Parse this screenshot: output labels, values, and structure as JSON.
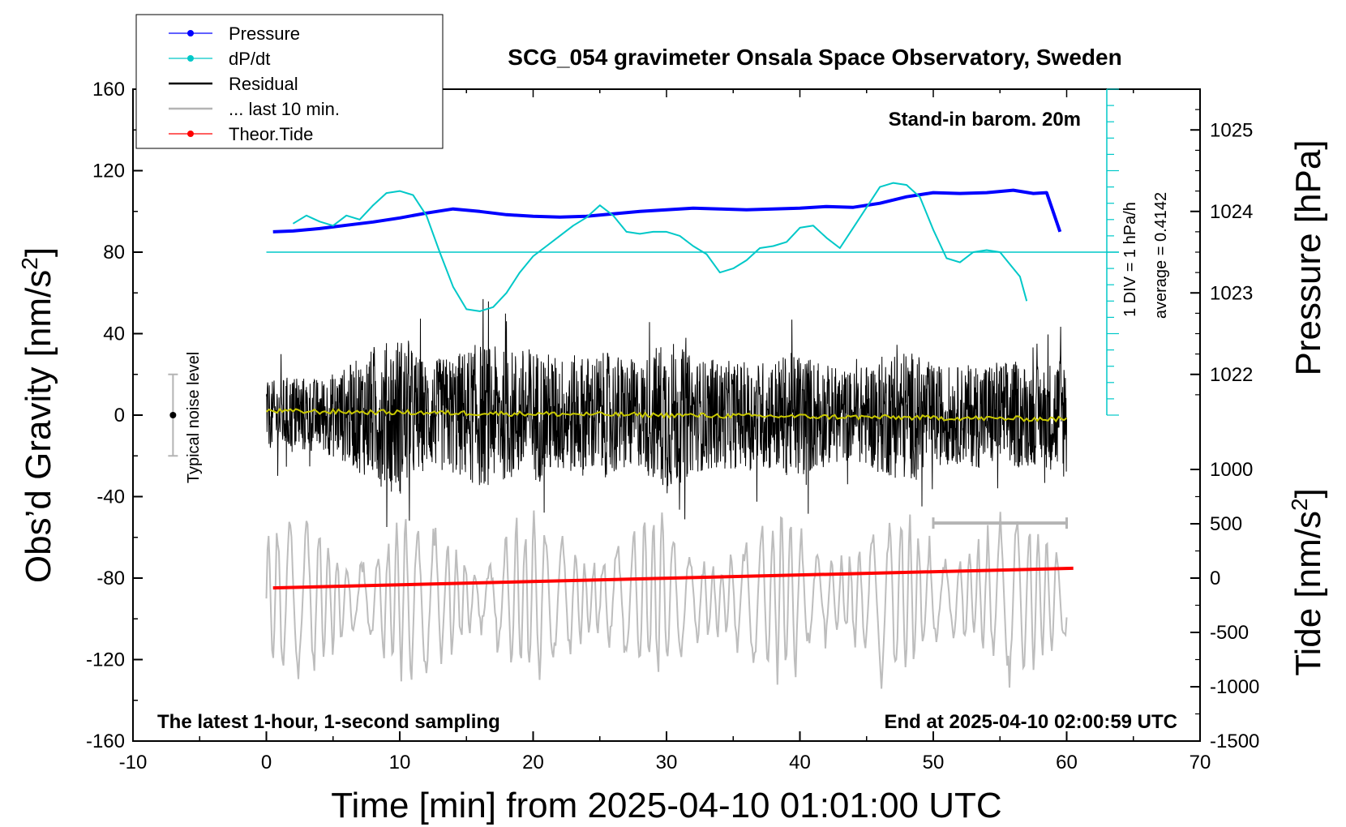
{
  "chart_data": {
    "type": "line",
    "title": "SCG_054 gravimeter Onsala Space Observatory, Sweden",
    "xlabel": "Time [min] from 2025-04-10 01:01:00 UTC",
    "ylabel_left": "Obs’d Gravity [nm/s",
    "ylabel_left_sup": "2",
    "ylabel_left_end": "]",
    "ylabel_pressure": "Pressure [hPa]",
    "ylabel_tide": "Tide [nm/s",
    "ylabel_tide_sup": "2",
    "ylabel_tide_end": "]",
    "xlim": [
      -10,
      70
    ],
    "ylim": [
      -160,
      160
    ],
    "xticks": [
      "-10",
      "0",
      "10",
      "20",
      "30",
      "40",
      "50",
      "60",
      "70"
    ],
    "yticks": [
      "160",
      "120",
      "80",
      "40",
      "0",
      "-40",
      "-80",
      "-120",
      "-160"
    ],
    "pressure_ticks": [
      "1025",
      "1024",
      "1023",
      "1022"
    ],
    "pressure_tick_values": [
      1025,
      1024,
      1023,
      1022
    ],
    "tide_ticks": [
      "1000",
      "500",
      "0",
      "-500",
      "-1000",
      "-1500"
    ],
    "tide_tick_values": [
      1000,
      500,
      0,
      -500,
      -1000,
      -1500
    ],
    "pressure_axis": {
      "ref_gravity": 80,
      "hpa_per_20nms2": 0.5,
      "ref_hpa": 1023.5
    },
    "tide_axis": {
      "ref_gravity": -160,
      "nms2_per_gravity_unit": 18.75,
      "ref_nms2": -1500
    },
    "legend": [
      {
        "label": "Pressure",
        "color": "#0000ff",
        "style": "line-dot"
      },
      {
        "label": "dP/dt",
        "color": "#00c8c8",
        "style": "line-dot"
      },
      {
        "label": "Residual",
        "color": "#000000",
        "style": "line"
      },
      {
        "label": "... last 10 min.",
        "color": "#b4b4b4",
        "style": "line"
      },
      {
        "label": "Theor.Tide",
        "color": "#ff0000",
        "style": "line-dot"
      }
    ],
    "annotations": {
      "barometer": "Stand-in barom. 20m",
      "div_label": "1 DIV = 1 hPa/h",
      "average_label": "average = 0.4142",
      "noise_label": "Typical noise level",
      "bottom_left": "The latest 1-hour, 1-second sampling",
      "bottom_right": "End at 2025-04-10 02:00:59 UTC"
    },
    "noise_bar": {
      "x": -7,
      "center": 0,
      "half_range": 20
    },
    "last10_bar": {
      "x_start": 50,
      "x_end": 60,
      "y": -53
    },
    "dpdt_reference_y": 80,
    "series": [
      {
        "name": "Pressure",
        "axis": "pressure_hpa",
        "color": "#0000ff",
        "x": [
          0.5,
          2,
          4,
          6,
          8,
          10,
          12,
          14,
          16,
          18,
          20,
          22,
          24,
          26,
          28,
          30,
          32,
          34,
          36,
          38,
          40,
          42,
          44,
          46,
          48,
          50,
          52,
          54,
          56,
          57.5,
          58.5,
          59.5
        ],
        "y": [
          1023.75,
          1023.76,
          1023.79,
          1023.83,
          1023.87,
          1023.92,
          1023.98,
          1024.03,
          1024.0,
          1023.96,
          1023.94,
          1023.93,
          1023.94,
          1023.97,
          1024.0,
          1024.02,
          1024.04,
          1024.03,
          1024.02,
          1024.03,
          1024.04,
          1024.06,
          1024.05,
          1024.1,
          1024.18,
          1024.23,
          1024.22,
          1024.23,
          1024.26,
          1024.22,
          1024.23,
          1023.75
        ]
      },
      {
        "name": "dP/dt",
        "axis": "gravity",
        "color": "#00c8c8",
        "x": [
          2,
          3,
          4,
          5,
          6,
          7,
          8,
          9,
          10,
          11,
          12,
          13,
          14,
          15,
          16,
          17,
          18,
          19,
          20,
          21,
          22,
          23,
          24,
          25,
          26,
          27,
          28,
          29,
          30,
          31,
          32,
          33,
          34,
          35,
          36,
          37,
          38,
          39,
          40,
          41,
          42,
          43,
          44,
          45,
          46,
          47,
          48,
          49,
          50,
          51,
          52,
          53,
          54,
          55,
          56,
          56.5,
          57
        ],
        "y": [
          94,
          98,
          95,
          93,
          98,
          96,
          103,
          109,
          110,
          108,
          98,
          80,
          63,
          52,
          51,
          53,
          60,
          70,
          78,
          83,
          88,
          93,
          97,
          103,
          98,
          90,
          89,
          90,
          90,
          88,
          83,
          79,
          70,
          72,
          76,
          82,
          83,
          85,
          92,
          93,
          87,
          82,
          92,
          102,
          112,
          114,
          113,
          107,
          91,
          77,
          75,
          80,
          81,
          80,
          72,
          68,
          56
        ]
      },
      {
        "name": "Theor.Tide",
        "axis": "tide_nms2",
        "color": "#ff0000",
        "x": [
          0.5,
          60.5
        ],
        "y": [
          -90,
          90
        ]
      }
    ],
    "residual_envelope_min": [
      0,
      2,
      4,
      6,
      8,
      10,
      12,
      14,
      16,
      18,
      20,
      22,
      24,
      26,
      28,
      30,
      32,
      34,
      36,
      38,
      40,
      42,
      44,
      46,
      48,
      50,
      52,
      54,
      56,
      58,
      60
    ],
    "residual_envelope_amp": [
      16,
      20,
      18,
      24,
      33,
      40,
      26,
      30,
      36,
      32,
      34,
      29,
      30,
      31,
      26,
      40,
      28,
      27,
      26,
      28,
      32,
      25,
      22,
      29,
      33,
      25,
      24,
      27,
      27,
      24,
      33
    ],
    "smoothed_residual": {
      "color": "#c8c800",
      "x": [
        0,
        60
      ],
      "y": [
        2,
        -2
      ]
    }
  }
}
